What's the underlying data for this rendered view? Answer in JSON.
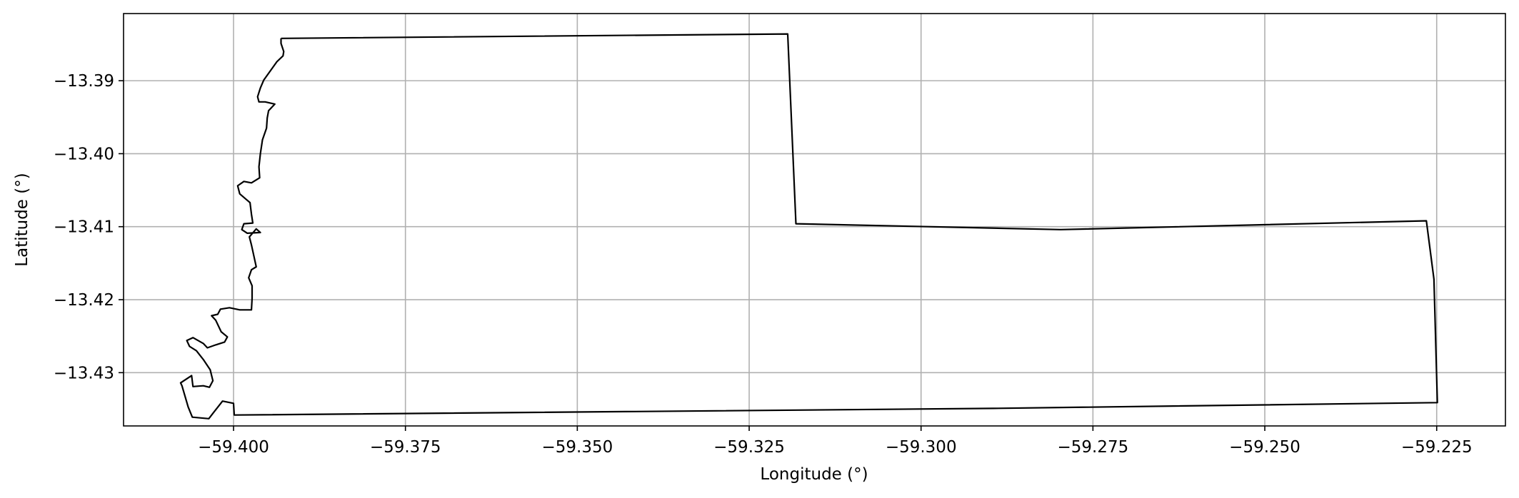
{
  "chart_data": {
    "type": "line",
    "title": "",
    "xlabel": "Longitude (°)",
    "ylabel": "Latitude (°)",
    "xlim": [
      -59.416,
      -59.215
    ],
    "ylim": [
      -13.4373,
      -13.3808
    ],
    "grid": true,
    "xticks": [
      -59.4,
      -59.375,
      -59.35,
      -59.325,
      -59.3,
      -59.275,
      -59.25,
      -59.225
    ],
    "xtick_labels": [
      "−59.400",
      "−59.375",
      "−59.350",
      "−59.325",
      "−59.300",
      "−59.275",
      "−59.250",
      "−59.225"
    ],
    "yticks": [
      -13.39,
      -13.4,
      -13.41,
      -13.42,
      -13.43
    ],
    "ytick_labels": [
      "−13.39",
      "−13.40",
      "−13.41",
      "−13.42",
      "−13.43"
    ],
    "series": [
      {
        "color": "#000000",
        "points": [
          [
            -59.3931,
            -13.3842
          ],
          [
            -59.3194,
            -13.3836
          ],
          [
            -59.319,
            -13.3922
          ],
          [
            -59.3182,
            -13.4096
          ],
          [
            -59.2797,
            -13.4104
          ],
          [
            -59.2265,
            -13.4092
          ],
          [
            -59.2254,
            -13.4172
          ],
          [
            -59.2249,
            -13.4341
          ],
          [
            -59.2895,
            -13.4349
          ],
          [
            -59.3999,
            -13.4358
          ],
          [
            -59.4,
            -13.4342
          ],
          [
            -59.4016,
            -13.4339
          ],
          [
            -59.4031,
            -13.4357
          ],
          [
            -59.4036,
            -13.4363
          ],
          [
            -59.406,
            -13.4361
          ],
          [
            -59.4066,
            -13.4347
          ],
          [
            -59.4075,
            -13.4318
          ],
          [
            -59.4077,
            -13.4314
          ],
          [
            -59.4061,
            -13.4304
          ],
          [
            -59.4059,
            -13.4319
          ],
          [
            -59.4044,
            -13.4318
          ],
          [
            -59.4035,
            -13.432
          ],
          [
            -59.403,
            -13.4311
          ],
          [
            -59.4034,
            -13.4296
          ],
          [
            -59.4044,
            -13.4282
          ],
          [
            -59.4054,
            -13.427
          ],
          [
            -59.4064,
            -13.4264
          ],
          [
            -59.4068,
            -13.4256
          ],
          [
            -59.4059,
            -13.4252
          ],
          [
            -59.4044,
            -13.426
          ],
          [
            -59.4038,
            -13.4266
          ],
          [
            -59.4026,
            -13.4262
          ],
          [
            -59.4013,
            -13.4258
          ],
          [
            -59.4009,
            -13.4251
          ],
          [
            -59.4018,
            -13.4244
          ],
          [
            -59.4026,
            -13.4228
          ],
          [
            -59.4032,
            -13.4222
          ],
          [
            -59.4023,
            -13.422
          ],
          [
            -59.4019,
            -13.4213
          ],
          [
            -59.4006,
            -13.4211
          ],
          [
            -59.3991,
            -13.4214
          ],
          [
            -59.3974,
            -13.4214
          ],
          [
            -59.3973,
            -13.4198
          ],
          [
            -59.3973,
            -13.4181
          ],
          [
            -59.3978,
            -13.417
          ],
          [
            -59.3974,
            -13.4159
          ],
          [
            -59.3967,
            -13.4155
          ],
          [
            -59.397,
            -13.4142
          ],
          [
            -59.3974,
            -13.4125
          ],
          [
            -59.3977,
            -13.4114
          ],
          [
            -59.3967,
            -13.4103
          ],
          [
            -59.3961,
            -13.4108
          ],
          [
            -59.398,
            -13.4109
          ],
          [
            -59.3988,
            -13.4104
          ],
          [
            -59.3985,
            -13.4096
          ],
          [
            -59.3972,
            -13.4095
          ],
          [
            -59.3974,
            -13.4083
          ],
          [
            -59.3976,
            -13.4067
          ],
          [
            -59.3981,
            -13.4063
          ],
          [
            -59.3991,
            -13.4055
          ],
          [
            -59.3994,
            -13.4044
          ],
          [
            -59.3985,
            -13.4038
          ],
          [
            -59.3974,
            -13.404
          ],
          [
            -59.3962,
            -13.4033
          ],
          [
            -59.3963,
            -13.4018
          ],
          [
            -59.3961,
            -13.4
          ],
          [
            -59.3958,
            -13.3981
          ],
          [
            -59.3952,
            -13.3965
          ],
          [
            -59.3951,
            -13.3951
          ],
          [
            -59.3949,
            -13.3941
          ],
          [
            -59.394,
            -13.3932
          ],
          [
            -59.3954,
            -13.3929
          ],
          [
            -59.3963,
            -13.3929
          ],
          [
            -59.3965,
            -13.3922
          ],
          [
            -59.3961,
            -13.391
          ],
          [
            -59.3956,
            -13.3899
          ],
          [
            -59.3937,
            -13.3874
          ],
          [
            -59.3928,
            -13.3866
          ],
          [
            -59.3927,
            -13.386
          ],
          [
            -59.3931,
            -13.3849
          ],
          [
            -59.3931,
            -13.3842
          ]
        ]
      }
    ]
  }
}
